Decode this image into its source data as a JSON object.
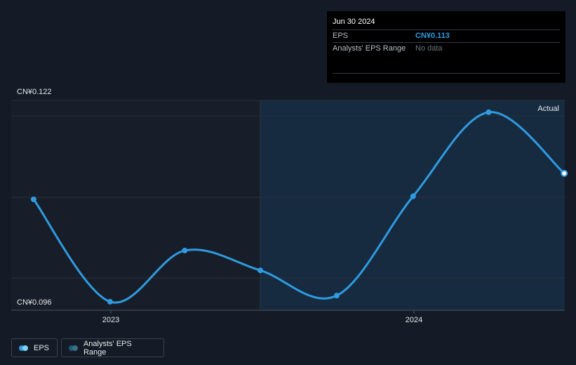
{
  "tooltip": {
    "date": "Jun 30 2024",
    "rows": [
      {
        "label": "EPS",
        "value": "CN¥0.113"
      },
      {
        "label": "Analysts' EPS Range",
        "value": "No data"
      }
    ]
  },
  "legend": {
    "eps_label": "EPS",
    "range_label": "Analysts' EPS Range"
  },
  "colors": {
    "background": "#151b26",
    "forecast_region": "#162a40",
    "line": "#2f9be0",
    "grid": "#2a313d"
  },
  "chart_data": {
    "type": "line",
    "title": "",
    "xlabel": "",
    "ylabel": "",
    "y_tick_labels": [
      "CN¥0.122",
      "CN¥0.096"
    ],
    "x_tick_labels": [
      "2023",
      "2024"
    ],
    "ylim": [
      0.096,
      0.122
    ],
    "grid": true,
    "region_label": "Actual",
    "series": [
      {
        "name": "EPS",
        "x": [
          "2022-09-30",
          "2022-12-31",
          "2023-03-31",
          "2023-06-30",
          "2023-09-30",
          "2023-12-31",
          "2024-03-31",
          "2024-06-30"
        ],
        "y": [
          0.1096,
          0.0962,
          0.1029,
          0.1003,
          0.097,
          0.11,
          0.121,
          0.113
        ]
      }
    ]
  }
}
